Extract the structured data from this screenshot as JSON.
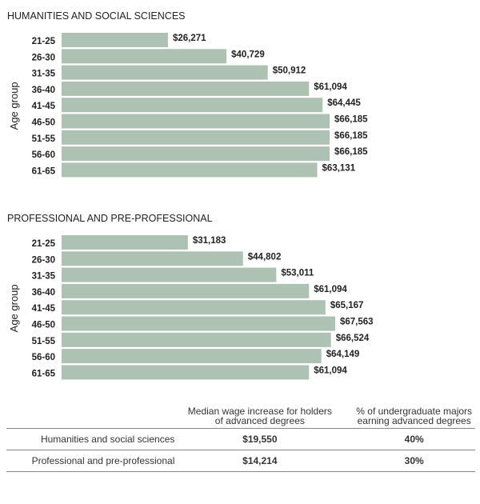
{
  "chart_data": [
    {
      "type": "bar",
      "orientation": "horizontal",
      "title": "HUMANITIES AND SOCIAL SCIENCES",
      "ylabel": "Age group",
      "categories": [
        "21-25",
        "26-30",
        "31-35",
        "36-40",
        "41-45",
        "46-50",
        "51-55",
        "56-60",
        "61-65"
      ],
      "values": [
        26271,
        40729,
        50912,
        61094,
        64445,
        66185,
        66185,
        66185,
        63131
      ],
      "data_labels": [
        "$26,271",
        "$40,729",
        "$50,912",
        "$61,094",
        "$64,445",
        "$66,185",
        "$66,185",
        "$66,185",
        "$63,131"
      ],
      "color": "#adc2b2",
      "grid": false
    },
    {
      "type": "bar",
      "orientation": "horizontal",
      "title": "PROFESSIONAL AND PRE-PROFESSIONAL",
      "ylabel": "Age group",
      "categories": [
        "21-25",
        "26-30",
        "31-35",
        "36-40",
        "41-45",
        "46-50",
        "51-55",
        "56-60",
        "61-65"
      ],
      "values": [
        31183,
        44802,
        53011,
        61094,
        65167,
        67563,
        66524,
        64149,
        61094
      ],
      "data_labels": [
        "$31,183",
        "$44,802",
        "$53,011",
        "$61,094",
        "$65,167",
        "$67,563",
        "$66,524",
        "$64,149",
        "$61,094"
      ],
      "color": "#adc2b2",
      "grid": false
    }
  ],
  "table": {
    "headers": [
      "",
      "Median wage increase for holders of advanced degrees",
      "% of undergraduate majors earning advanced degrees"
    ],
    "rows": [
      [
        "Humanities and social sciences",
        "$19,550",
        "40%"
      ],
      [
        "Professional and pre-professional",
        "$14,214",
        "30%"
      ]
    ]
  }
}
